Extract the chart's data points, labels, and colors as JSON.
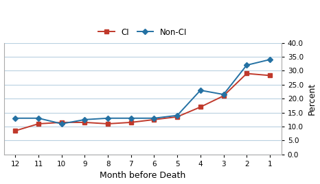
{
  "months": [
    12,
    11,
    10,
    9,
    8,
    7,
    6,
    5,
    4,
    3,
    2,
    1
  ],
  "ci": [
    8.5,
    11.0,
    11.5,
    11.5,
    11.0,
    11.5,
    12.5,
    13.5,
    17.0,
    21.0,
    29.0,
    28.3
  ],
  "non_ci": [
    13.0,
    13.0,
    11.0,
    12.5,
    13.0,
    13.0,
    13.0,
    14.0,
    23.0,
    21.5,
    32.0,
    34.0
  ],
  "ci_color": "#c0392b",
  "non_ci_color": "#2471a3",
  "ci_label": "CI",
  "non_ci_label": "Non-CI",
  "xlabel": "Month before Death",
  "ylabel": "Percent",
  "ylim": [
    0,
    40
  ],
  "yticks": [
    0.0,
    5.0,
    10.0,
    15.0,
    20.0,
    25.0,
    30.0,
    35.0,
    40.0
  ],
  "background_color": "#ffffff",
  "grid_color": "#b8d0e0",
  "axis_fontsize": 9,
  "tick_fontsize": 7.5,
  "legend_fontsize": 8.5
}
